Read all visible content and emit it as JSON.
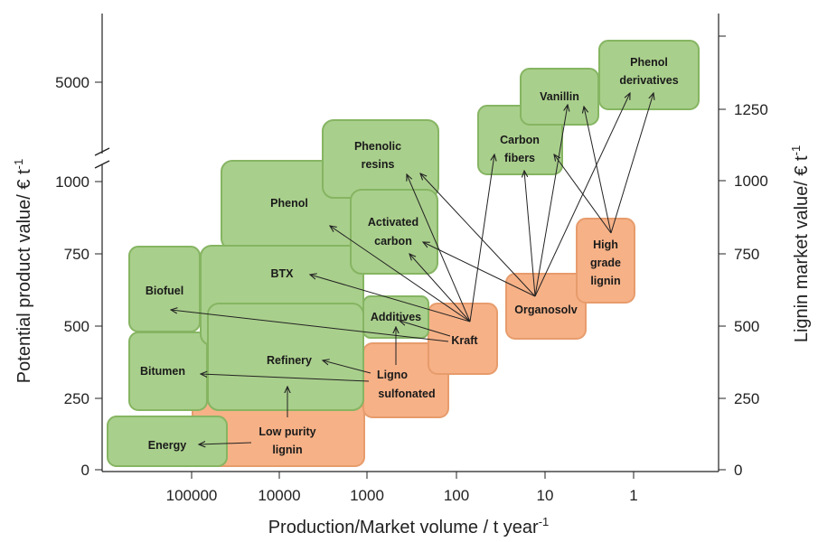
{
  "colors": {
    "product_box": "#a9cf8c",
    "product_border": "#86b562",
    "lignin_box": "#f6b187",
    "lignin_border": "#e79c6c"
  },
  "axes": {
    "x_label": "Production/Market volume / t year",
    "x_label_sup": "-1",
    "y_left_label": "Potential product value/ € t",
    "y_left_sup": "-1",
    "y_right_label": "Lignin market value/ € t",
    "y_right_sup": "-1",
    "x_ticks": [
      "100000",
      "10000",
      "1000",
      "100",
      "10",
      "1"
    ],
    "y_left_ticks": [
      "0",
      "250",
      "500",
      "750",
      "1000",
      "5000"
    ],
    "y_right_ticks": [
      "0",
      "250",
      "500",
      "750",
      "1000",
      "1250"
    ]
  },
  "products": {
    "energy": "Energy",
    "bitumen": "Bitumen",
    "biofuel": "Biofuel",
    "refinery": "Refinery",
    "btx": "BTX",
    "phenol": "Phenol",
    "phenolic_resins": [
      "Phenolic",
      "resins"
    ],
    "activated_carbon": [
      "Activated",
      "carbon"
    ],
    "additives": "Additives",
    "carbon_fibers": [
      "Carbon",
      "fibers"
    ],
    "vanillin": "Vanillin",
    "phenol_derivatives": [
      "Phenol",
      "derivatives"
    ]
  },
  "lignins": {
    "low_purity": [
      "Low purity",
      "lignin"
    ],
    "ligno_sulfonated": [
      "Ligno",
      "sulfonated"
    ],
    "kraft": "Kraft",
    "organosolv": "Organosolv",
    "high_grade": [
      "High",
      "grade",
      "lignin"
    ]
  }
}
